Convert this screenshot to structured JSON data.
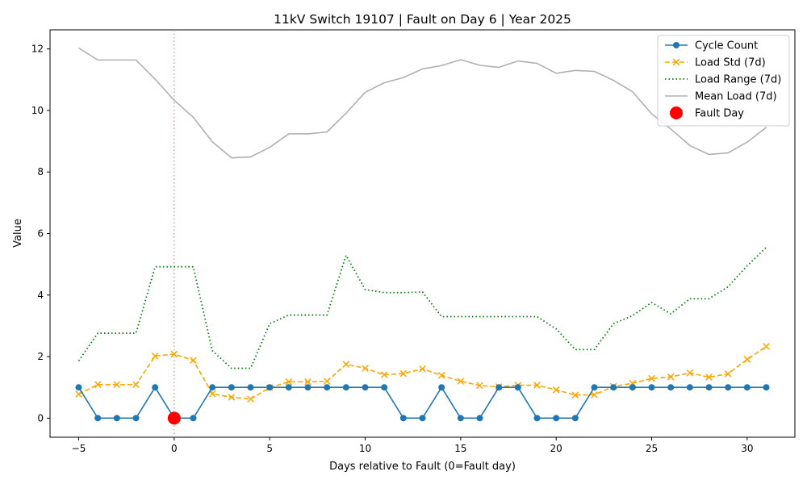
{
  "chart_data": {
    "type": "line",
    "title": "11kV Switch 19107 | Fault on Day 6 | Year 2025",
    "xlabel": "Days relative to Fault (0=Fault day)",
    "ylabel": "Value",
    "xlim": [
      -6.5,
      32.5
    ],
    "ylim": [
      -0.62,
      12.62
    ],
    "xticks": [
      "−5",
      "0",
      "5",
      "10",
      "15",
      "20",
      "25",
      "30"
    ],
    "xtick_values": [
      -5,
      0,
      5,
      10,
      15,
      20,
      25,
      30
    ],
    "yticks": [
      "0",
      "2",
      "4",
      "6",
      "8",
      "10",
      "12"
    ],
    "ytick_values": [
      0,
      2,
      4,
      6,
      8,
      10,
      12
    ],
    "legend_position": "top-right",
    "fault_line_x": 0,
    "x": [
      -5,
      -4,
      -3,
      -2,
      -1,
      0,
      1,
      2,
      3,
      4,
      5,
      6,
      7,
      8,
      9,
      10,
      11,
      12,
      13,
      14,
      15,
      16,
      17,
      18,
      19,
      20,
      21,
      22,
      23,
      24,
      25,
      26,
      27,
      28,
      29,
      30,
      31
    ],
    "series": [
      {
        "name": "Cycle Count",
        "style": "solid-circle",
        "color": "#1f77b4",
        "values": [
          1,
          0,
          0,
          0,
          1,
          0,
          0,
          1,
          1,
          1,
          1,
          1,
          1,
          1,
          1,
          1,
          1,
          0,
          0,
          1,
          0,
          0,
          1,
          1,
          0,
          0,
          0,
          1,
          1,
          1,
          1,
          1,
          1,
          1,
          1,
          1,
          1
        ]
      },
      {
        "name": "Load Std (7d)",
        "style": "dashed-x",
        "color": "#ffa500",
        "values": [
          0.78,
          1.09,
          1.09,
          1.09,
          2.02,
          2.08,
          1.88,
          0.79,
          0.68,
          0.62,
          0.99,
          1.18,
          1.18,
          1.2,
          1.75,
          1.62,
          1.41,
          1.45,
          1.6,
          1.39,
          1.2,
          1.06,
          1.02,
          1.07,
          1.07,
          0.92,
          0.75,
          0.76,
          1.03,
          1.13,
          1.29,
          1.34,
          1.47,
          1.33,
          1.44,
          1.91,
          2.33
        ]
      },
      {
        "name": "Load Range (7d)",
        "style": "dotted",
        "color": "#008000",
        "values": [
          1.86,
          2.76,
          2.76,
          2.76,
          4.92,
          4.92,
          4.92,
          2.19,
          1.62,
          1.62,
          3.07,
          3.35,
          3.35,
          3.35,
          5.29,
          4.18,
          4.08,
          4.08,
          4.1,
          3.3,
          3.3,
          3.3,
          3.3,
          3.3,
          3.3,
          2.9,
          2.23,
          2.23,
          3.07,
          3.33,
          3.76,
          3.39,
          3.88,
          3.88,
          4.27,
          4.95,
          5.55
        ]
      },
      {
        "name": "Mean Load (7d)",
        "style": "solid",
        "color": "#b0b0b0",
        "values": [
          12.03,
          11.64,
          11.64,
          11.64,
          11.02,
          10.33,
          9.78,
          8.98,
          8.46,
          8.49,
          8.8,
          9.24,
          9.24,
          9.3,
          9.91,
          10.59,
          10.9,
          11.07,
          11.35,
          11.46,
          11.65,
          11.47,
          11.4,
          11.61,
          11.53,
          11.21,
          11.3,
          11.27,
          10.98,
          10.61,
          9.89,
          9.4,
          8.86,
          8.57,
          8.62,
          8.97,
          9.45
        ]
      }
    ],
    "fault_point": {
      "name": "Fault Day",
      "x": 0,
      "y": 0,
      "color": "#ff0000"
    }
  }
}
